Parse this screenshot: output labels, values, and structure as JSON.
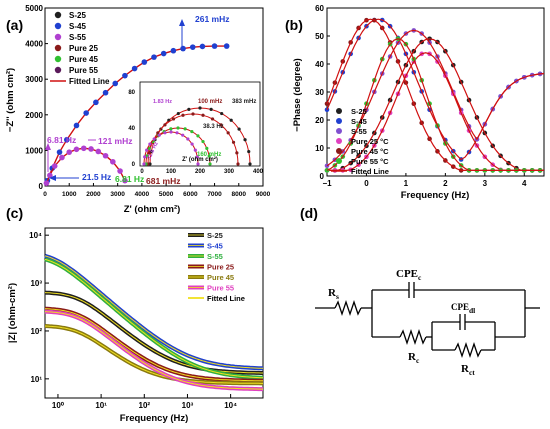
{
  "chart_data": [
    {
      "panel": "(a)",
      "type": "scatter",
      "xlabel": "Z' (ohm cm²)",
      "ylabel": "−Z'' (ohm cm²)",
      "xlim": [
        0,
        9000
      ],
      "ylim": [
        0,
        5000
      ],
      "xticks": [
        "0",
        "1000",
        "2000",
        "3000",
        "4000",
        "5000",
        "6000",
        "7000",
        "8000",
        "9000"
      ],
      "yticks": [
        "0",
        "1000",
        "2000",
        "3000",
        "4000",
        "5000"
      ],
      "legend": [
        "S-25",
        "S-45",
        "S-55",
        "Pure 25",
        "Pure 45",
        "Pure 55",
        "Fitted Line"
      ],
      "annotations": [
        "261 mHz",
        "6.81 Hz",
        "121 mHz",
        "21.5 Hz"
      ],
      "series": [
        {
          "name": "S-45",
          "color": "#2040d0",
          "x": [
            100,
            300,
            600,
            900,
            1300,
            1700,
            2100,
            2500,
            2900,
            3300,
            3700,
            4100,
            4500,
            4900,
            5300,
            5700,
            6100,
            6500,
            7000,
            7500
          ],
          "y": [
            150,
            500,
            950,
            1300,
            1700,
            2050,
            2350,
            2620,
            2880,
            3100,
            3300,
            3480,
            3620,
            3720,
            3800,
            3860,
            3900,
            3920,
            3930,
            3930
          ]
        },
        {
          "name": "S-55",
          "color": "#b040d0",
          "x": [
            60,
            200,
            400,
            700,
            1000,
            1300,
            1600,
            1900,
            2200,
            2500,
            2800,
            3100,
            3300
          ],
          "y": [
            80,
            300,
            560,
            800,
            950,
            1030,
            1060,
            1040,
            970,
            850,
            680,
            420,
            150
          ]
        }
      ],
      "fit": {
        "color": "#d01010"
      },
      "inset": {
        "xlabel": "Z' (ohm cm²)",
        "xticks": [
          "0",
          "100",
          "200",
          "300",
          "400"
        ],
        "yticks": [
          "0",
          "40",
          "80"
        ],
        "annotations": [
          "1.83 Hz",
          "100 mHz",
          "383 mHz",
          "38.3 Hz",
          "31.6 Hz",
          "160 mHz",
          "6.81 Hz",
          "681 mHz"
        ]
      }
    },
    {
      "panel": "(b)",
      "type": "line",
      "xlabel": "Frequency (Hz)",
      "ylabel": "−Phase (degree)",
      "xlim": [
        -1,
        4.5
      ],
      "ylim": [
        0,
        60
      ],
      "xticks": [
        "−1",
        "0",
        "1",
        "2",
        "3",
        "4"
      ],
      "yticks": [
        "0",
        "10",
        "20",
        "30",
        "40",
        "50",
        "60"
      ],
      "legend": [
        "S-25",
        "S-45",
        "S-55",
        "Pure 25 °C",
        "Pure 45 °C",
        "Pure 55 °C",
        "Fitted Line"
      ],
      "series": [
        {
          "name": "S-25",
          "color": "#202020",
          "center": 1.6,
          "peak": 49,
          "width": 1.3
        },
        {
          "name": "S-45",
          "color": "#2040d0",
          "center": 0.3,
          "peak": 56,
          "width": 1.4
        },
        {
          "name": "S-55",
          "color": "#8050d0",
          "center": 1.2,
          "peak": 52,
          "width": 1.35
        },
        {
          "name": "Pure 25 °C",
          "color": "#e040c0",
          "center": 1.5,
          "peak": 44,
          "width": 1.1
        },
        {
          "name": "Pure 45 °C",
          "color": "#8a1a1a",
          "center": 0.1,
          "peak": 56,
          "width": 1.25
        },
        {
          "name": "Pure 55 °C",
          "color": "#30c030",
          "center": 0.8,
          "peak": 49,
          "width": 1.0
        }
      ]
    },
    {
      "panel": "(c)",
      "type": "line",
      "xlabel": "Frequency (Hz)",
      "ylabel": "|Z| (ohm-cm²)",
      "xscale": "log",
      "yscale": "log",
      "xticks": [
        "10⁰",
        "10¹",
        "10²",
        "10³",
        "10⁴"
      ],
      "yticks": [
        "10¹",
        "10²",
        "10³",
        "10⁴"
      ],
      "legend": [
        "S-25",
        "S-45",
        "S-55",
        "Pure 25",
        "Pure 45",
        "Pure 55",
        "Fitted Line"
      ],
      "series": [
        {
          "name": "S-25",
          "color": "#202020",
          "z0": 650,
          "zinf": 13
        },
        {
          "name": "S-45",
          "color": "#2040d0",
          "z0": 4500,
          "zinf": 16
        },
        {
          "name": "S-55",
          "color": "#30b040",
          "z0": 3800,
          "zinf": 10
        },
        {
          "name": "Pure 25",
          "color": "#8a1a1a",
          "z0": 300,
          "zinf": 9
        },
        {
          "name": "Pure 45",
          "color": "#8a7a10",
          "z0": 130,
          "zinf": 8
        },
        {
          "name": "Pure 55",
          "color": "#e040c0",
          "z0": 260,
          "zinf": 6
        }
      ]
    }
  ],
  "circuit": {
    "panel": "(d)",
    "labels": {
      "rs": "R",
      "rs_sub": "s",
      "cpec": "CPE",
      "cpec_sub": "c",
      "cpedl": "CPE",
      "cpedl_sub": "dl",
      "rc": "R",
      "rc_sub": "c",
      "rct": "R",
      "rct_sub": "ct"
    }
  }
}
